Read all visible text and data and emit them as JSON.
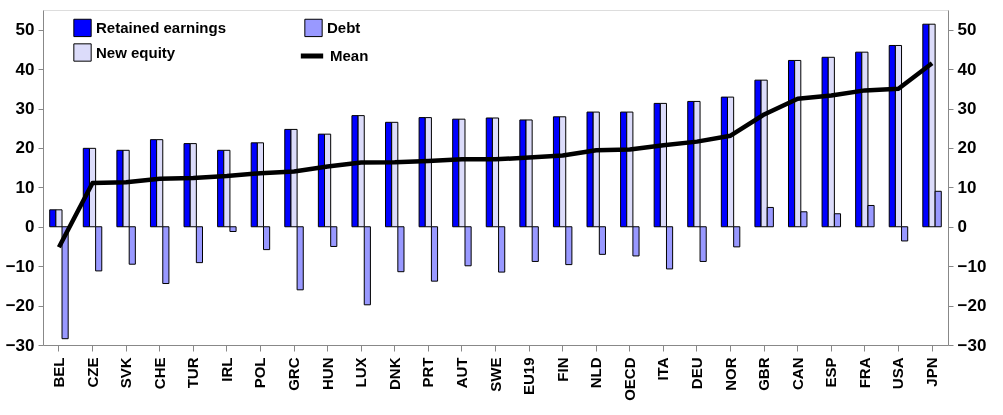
{
  "chart_data": {
    "type": "bar",
    "categories": [
      "BEL",
      "CZE",
      "SVK",
      "CHE",
      "TUR",
      "IRL",
      "POL",
      "GRC",
      "HUN",
      "LUX",
      "DNK",
      "PRT",
      "AUT",
      "SWE",
      "EU19",
      "FIN",
      "NLD",
      "OECD",
      "ITA",
      "DEU",
      "NOR",
      "GBR",
      "CAN",
      "ESP",
      "FRA",
      "USA",
      "JPN"
    ],
    "series": [
      {
        "name": "Retained earnings",
        "color": "#0000ff",
        "values": [
          4.3,
          19.9,
          19.4,
          22.1,
          21.1,
          19.4,
          21.3,
          24.7,
          23.5,
          28.2,
          26.5,
          27.7,
          27.3,
          27.6,
          27.1,
          27.9,
          29.1,
          29.1,
          31.3,
          31.8,
          32.9,
          37.2,
          42.2,
          43.0,
          44.3,
          46.0,
          51.4
        ]
      },
      {
        "name": "New equity",
        "color": "#dcdcfa",
        "values": [
          4.3,
          19.9,
          19.4,
          22.1,
          21.1,
          19.4,
          21.3,
          24.7,
          23.5,
          28.2,
          26.5,
          27.7,
          27.3,
          27.6,
          27.1,
          27.9,
          29.1,
          29.1,
          31.3,
          31.8,
          32.9,
          37.2,
          42.2,
          43.0,
          44.3,
          46.0,
          51.4
        ]
      },
      {
        "name": "Debt",
        "color": "#9999ff",
        "values": [
          -28.4,
          -11.2,
          -9.5,
          -14.4,
          -9.1,
          -1.2,
          -5.8,
          -16.0,
          -5.0,
          -19.8,
          -11.4,
          -13.8,
          -9.9,
          -11.5,
          -8.8,
          -9.6,
          -7.0,
          -7.4,
          -10.7,
          -8.8,
          -5.1,
          4.9,
          3.8,
          3.3,
          5.4,
          -3.6,
          9.0
        ]
      },
      {
        "name": "Mean",
        "type": "line",
        "color": "#000000",
        "values": [
          -5.2,
          11.1,
          11.3,
          12.2,
          12.4,
          12.9,
          13.6,
          14.0,
          15.3,
          16.3,
          16.4,
          16.7,
          17.1,
          17.1,
          17.6,
          18.1,
          19.4,
          19.6,
          20.7,
          21.6,
          23.1,
          28.5,
          32.5,
          33.3,
          34.6,
          35.0,
          41.5
        ]
      }
    ],
    "ylim": [
      -30,
      55
    ],
    "yticks": [
      -30,
      -20,
      -10,
      0,
      10,
      20,
      30,
      40,
      50
    ],
    "y2lim": [
      -30,
      55
    ],
    "y2ticks": [
      -30,
      -20,
      -10,
      0,
      10,
      20,
      30,
      40,
      50
    ],
    "grid": false,
    "legend": "top left"
  }
}
